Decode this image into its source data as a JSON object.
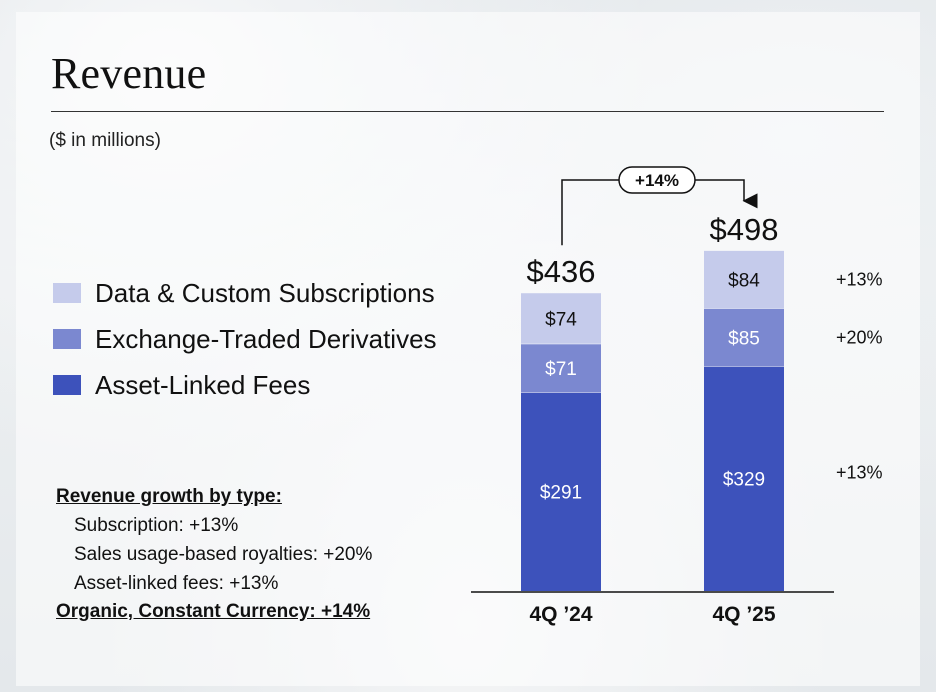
{
  "title": "Revenue",
  "subtitle": "($ in millions)",
  "legend": [
    {
      "label": "Data & Custom Subscriptions",
      "color": "#c5cbeb"
    },
    {
      "label": "Exchange-Traded Derivatives",
      "color": "#7b88d0"
    },
    {
      "label": "Asset-Linked Fees",
      "color": "#3d52bb"
    }
  ],
  "notes": {
    "heading": "Revenue growth by type:",
    "lines": [
      "Subscription: +13%",
      "Sales usage-based royalties: +20%",
      "Asset-linked fees: +13%"
    ],
    "footer": "Organic, Constant Currency: +14%"
  },
  "chart_data": {
    "type": "bar",
    "stacked": true,
    "categories": [
      "4Q ’24",
      "4Q ’25"
    ],
    "series": [
      {
        "name": "Asset-Linked Fees",
        "values": [
          291,
          329
        ],
        "labels": [
          "$291",
          "$329"
        ],
        "color": "#3d52bb"
      },
      {
        "name": "Exchange-Traded Derivatives",
        "values": [
          71,
          85
        ],
        "labels": [
          "$71",
          "$85"
        ],
        "color": "#7b88d0"
      },
      {
        "name": "Data & Custom Subscriptions",
        "values": [
          74,
          84
        ],
        "labels": [
          "$74",
          "$84"
        ],
        "color": "#c5cbeb"
      }
    ],
    "totals": [
      436,
      498
    ],
    "total_labels": [
      "$436",
      "$498"
    ],
    "growth_labels": [
      "+13%",
      "+20%",
      "+13%"
    ],
    "overall_growth": "+14%",
    "legend_position": "left"
  }
}
